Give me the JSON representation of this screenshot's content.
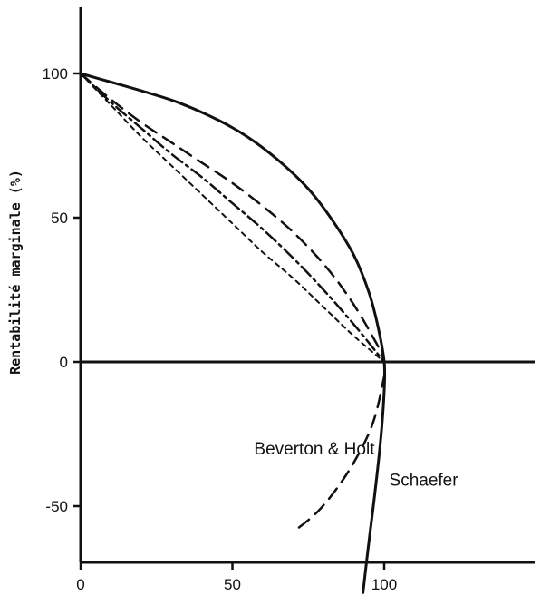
{
  "chart_data": {
    "type": "line",
    "title": "",
    "xlabel": "",
    "ylabel": "Rentabilité marginale (%)",
    "xlim": [
      0,
      150
    ],
    "ylim": [
      -70,
      125
    ],
    "x_ticks": [
      0,
      50,
      100
    ],
    "x_tick_labels": [
      "0",
      "50",
      "100"
    ],
    "y_ticks": [
      100,
      50,
      0,
      -50
    ],
    "y_tick_labels": [
      "100",
      "50",
      "0",
      "-50"
    ],
    "grid": false,
    "legend": "none",
    "series": [
      {
        "name": "Schaefer",
        "style": "solid",
        "x": [
          0,
          10,
          20,
          32,
          45,
          55,
          65,
          75,
          83,
          90,
          95,
          98,
          100,
          100,
          99,
          97,
          95,
          93
        ],
        "y": [
          100,
          97,
          94,
          90,
          84,
          78,
          70,
          60,
          49,
          37,
          24,
          12,
          0,
          -10,
          -25,
          -45,
          -62,
          -80
        ]
      },
      {
        "name": "Beverton & Holt",
        "style": "long-dash",
        "x": [
          0,
          10,
          20,
          30,
          40,
          50,
          60,
          70,
          80,
          88,
          95,
          100,
          99,
          96,
          91,
          85,
          78,
          70
        ],
        "y": [
          100,
          91,
          83,
          76,
          69,
          62,
          54,
          45,
          34,
          23,
          11,
          0,
          -10,
          -22,
          -33,
          -43,
          -52,
          -59
        ]
      },
      {
        "name": "",
        "style": "dash-dot",
        "x": [
          0,
          10,
          20,
          30,
          40,
          50,
          60,
          70,
          80,
          90,
          100
        ],
        "y": [
          100,
          90,
          81,
          72,
          64,
          55,
          46,
          36,
          25,
          13,
          0
        ]
      },
      {
        "name": "",
        "style": "short-dash",
        "x": [
          0,
          10,
          20,
          30,
          40,
          50,
          60,
          70,
          80,
          90,
          100
        ],
        "y": [
          100,
          89,
          78,
          68,
          58,
          48,
          38,
          29,
          19,
          9,
          0
        ]
      }
    ],
    "annotations": [
      {
        "text": "Beverton & Holt",
        "x": 77,
        "y": -32
      },
      {
        "text": "Schaefer",
        "x": 113,
        "y": -43
      }
    ]
  }
}
